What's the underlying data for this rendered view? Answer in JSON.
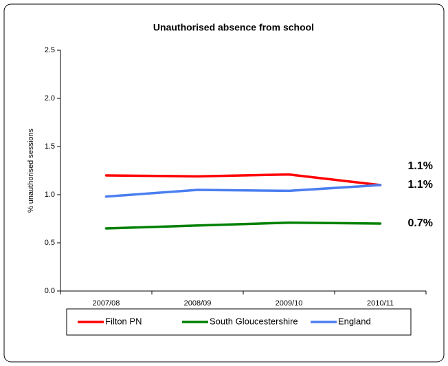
{
  "chart_data": {
    "type": "line",
    "title": "Unauthorised absence from school",
    "y_label": "% unauthorised sessions",
    "categories": [
      "2007/08",
      "2008/09",
      "2009/10",
      "2010/11"
    ],
    "series": [
      {
        "name": "Filton PN",
        "color": "#ff0000",
        "values": [
          1.2,
          1.19,
          1.21,
          1.1
        ],
        "value_labels": [
          null,
          null,
          null,
          "1.1%"
        ]
      },
      {
        "name": "South Gloucestershire",
        "color": "#008000",
        "values": [
          0.65,
          0.68,
          0.71,
          0.7
        ],
        "value_labels": [
          null,
          null,
          null,
          "0.7%"
        ]
      },
      {
        "name": "England",
        "color": "#4a7ef0",
        "values": [
          0.98,
          1.05,
          1.04,
          1.1
        ],
        "value_labels": [
          null,
          null,
          null,
          "1.1%"
        ]
      }
    ],
    "ylim": [
      0,
      2.5
    ],
    "yticks": [
      {
        "value": 0,
        "label": "0.0"
      },
      0.5,
      {
        "value": 1,
        "label": "1.0"
      },
      1.5,
      {
        "value": 2,
        "label": "2.0"
      },
      2.5
    ],
    "legend": "bottom"
  }
}
